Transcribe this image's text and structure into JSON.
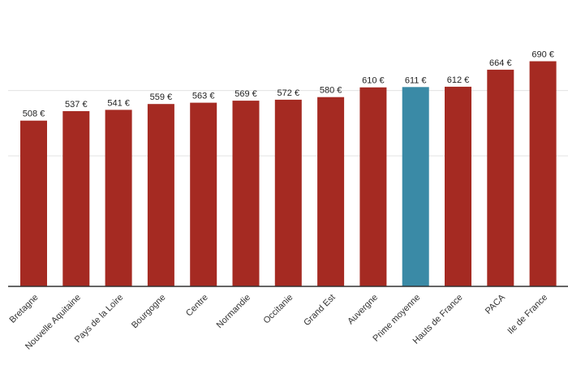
{
  "chart_data": {
    "type": "bar",
    "categories": [
      "Bretagne",
      "Nouvelle Aquitaine",
      "Pays de la Loire",
      "Bourgogne",
      "Centre",
      "Normandie",
      "Occitanie",
      "Grand Est",
      "Auvergne",
      "Prime moyenne",
      "Hauts de France",
      "PACA",
      "Ile de France"
    ],
    "values": [
      508,
      537,
      541,
      559,
      563,
      569,
      572,
      580,
      610,
      611,
      612,
      664,
      690
    ],
    "value_labels": [
      "508 €",
      "537 €",
      "541 €",
      "559 €",
      "563 €",
      "569 €",
      "572 €",
      "580 €",
      "610 €",
      "611 €",
      "612 €",
      "664 €",
      "690 €"
    ],
    "ylim": [
      0,
      800
    ],
    "gridlines": [
      400,
      600
    ],
    "grid": true,
    "title": "",
    "xlabel": "",
    "ylabel": "",
    "colors": {
      "default_bar": "#a52a22",
      "highlight_bar": "#3a8aa6",
      "highlight_category": "Prime moyenne",
      "grid": "#e3e3e3",
      "axis": "#333333"
    }
  }
}
